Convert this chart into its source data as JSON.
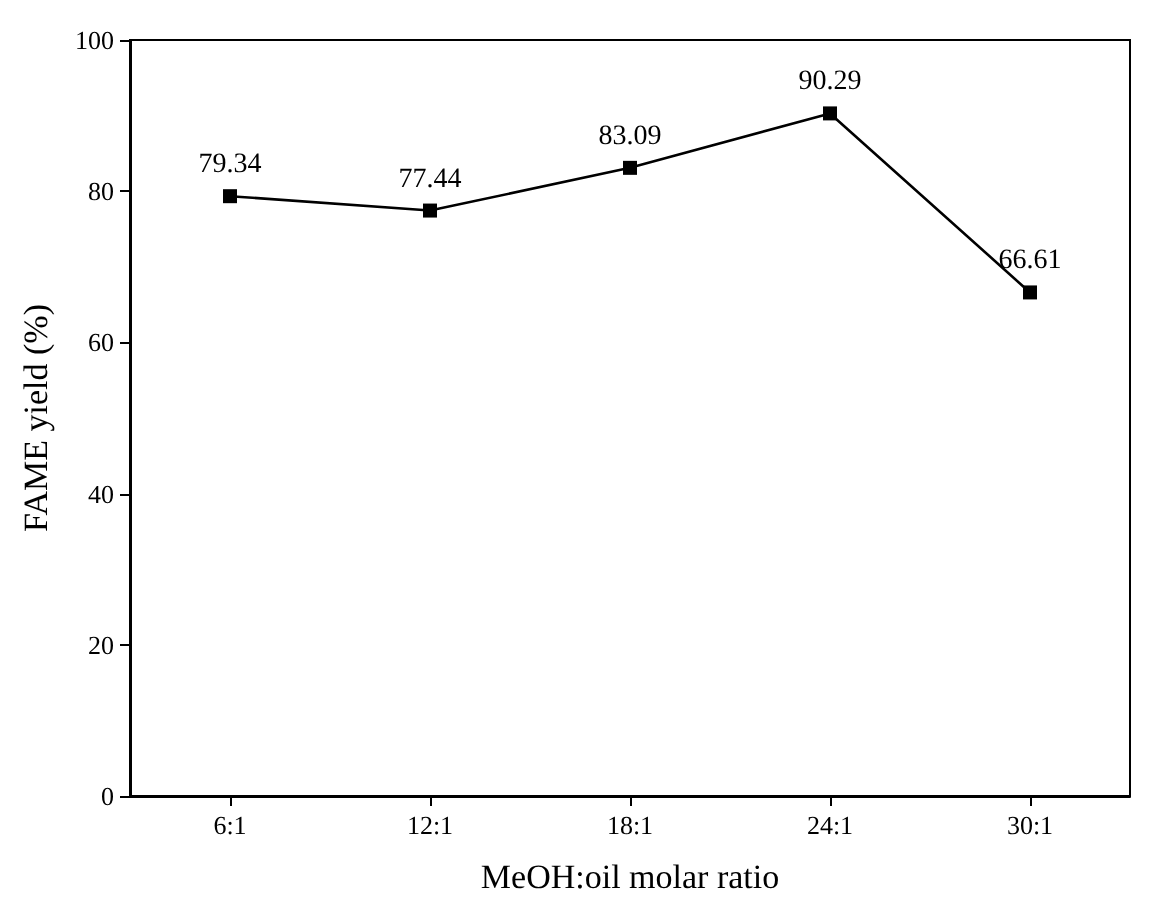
{
  "chart_data": {
    "type": "line",
    "xlabel": "MeOH:oil molar ratio",
    "ylabel": "FAME yield (%)",
    "categories": [
      "6:1",
      "12:1",
      "18:1",
      "24:1",
      "30:1"
    ],
    "series": [
      {
        "color": "#000000",
        "values": [
          79.34,
          77.44,
          83.09,
          90.29,
          66.61
        ]
      }
    ],
    "ylim": [
      0,
      100
    ],
    "yticks": [
      0,
      20,
      40,
      60,
      80,
      100
    ],
    "data_labels": true,
    "marker": "square",
    "line_style": "solid",
    "grid": false
  }
}
